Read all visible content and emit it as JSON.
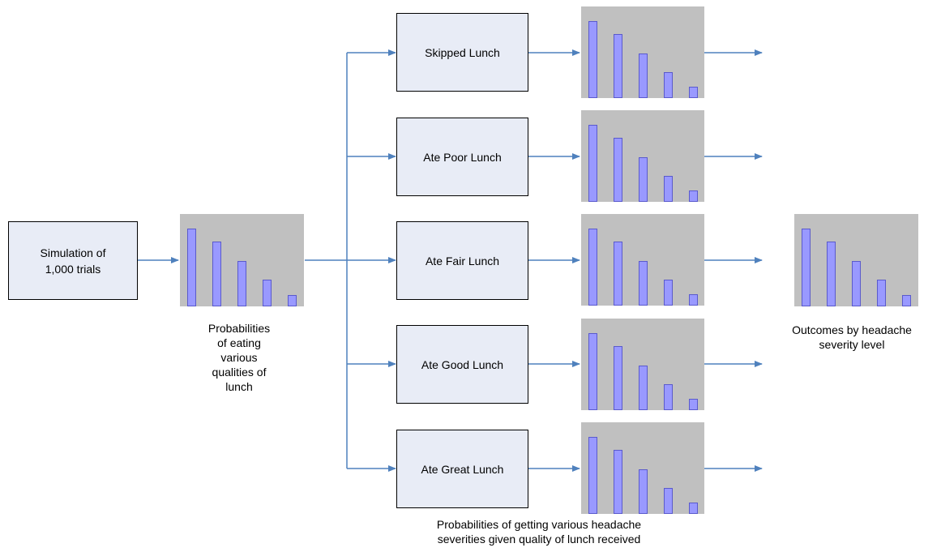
{
  "colors": {
    "arrow": "#4f81bd",
    "box_fill": "#e8ecf6",
    "chart_bg": "#c0c0c0",
    "bar_fill": "#9999ff"
  },
  "start_box": {
    "line1": "Simulation of",
    "line2": "1,000 trials"
  },
  "lunch_boxes": [
    {
      "label": "Skipped Lunch"
    },
    {
      "label": "Ate Poor Lunch"
    },
    {
      "label": "Ate Fair Lunch"
    },
    {
      "label": "Ate Good Lunch"
    },
    {
      "label": "Ate Great Lunch"
    }
  ],
  "captions": {
    "lunch_prob": [
      "Probabilities",
      "of eating",
      "various",
      "qualities of",
      "lunch"
    ],
    "outcomes": [
      "Outcomes by headache",
      "severity level"
    ],
    "severity": [
      "Probabilities of getting various headache",
      "severities given quality of lunch received"
    ]
  },
  "chart_data": {
    "type": "bar",
    "note_values_relative": true,
    "bar_values": [
      1.0,
      0.83,
      0.58,
      0.34,
      0.15
    ]
  }
}
